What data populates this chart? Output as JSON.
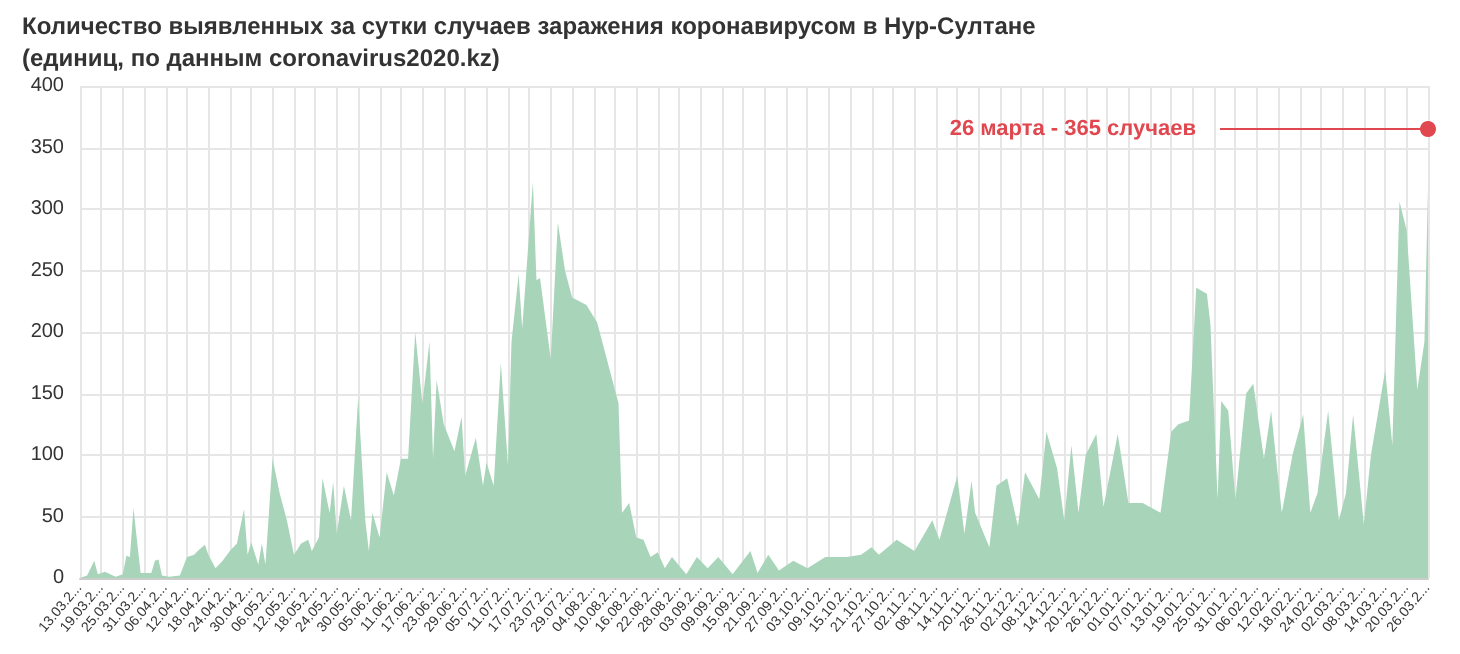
{
  "chart_data": {
    "type": "area",
    "title": "Количество выявленных за сутки случаев заражения коронавирусом в Нур-Султане",
    "subtitle": "(единиц, по данным coronavirus2020.kz)",
    "x": [
      "2020-03-13",
      "2020-03-15",
      "2020-03-17",
      "2020-03-18",
      "2020-03-20",
      "2020-03-23",
      "2020-03-25",
      "2020-03-26",
      "2020-03-27",
      "2020-03-28",
      "2020-03-29",
      "2020-03-30",
      "2020-04-02",
      "2020-04-03",
      "2020-04-04",
      "2020-04-05",
      "2020-04-07",
      "2020-04-10",
      "2020-04-12",
      "2020-04-14",
      "2020-04-15",
      "2020-04-17",
      "2020-04-18",
      "2020-04-20",
      "2020-04-22",
      "2020-04-24",
      "2020-04-26",
      "2020-04-28",
      "2020-04-29",
      "2020-04-30",
      "2020-05-02",
      "2020-05-03",
      "2020-05-04",
      "2020-05-06",
      "2020-05-08",
      "2020-05-10",
      "2020-05-12",
      "2020-05-14",
      "2020-05-16",
      "2020-05-17",
      "2020-05-19",
      "2020-05-20",
      "2020-05-22",
      "2020-05-23",
      "2020-05-24",
      "2020-05-26",
      "2020-05-28",
      "2020-05-30",
      "2020-06-01",
      "2020-06-02",
      "2020-06-03",
      "2020-06-05",
      "2020-06-07",
      "2020-06-09",
      "2020-06-11",
      "2020-06-13",
      "2020-06-15",
      "2020-06-17",
      "2020-06-19",
      "2020-06-20",
      "2020-06-21",
      "2020-06-23",
      "2020-06-26",
      "2020-06-28",
      "2020-06-29",
      "2020-07-02",
      "2020-07-04",
      "2020-07-05",
      "2020-07-07",
      "2020-07-09",
      "2020-07-11",
      "2020-07-12",
      "2020-07-14",
      "2020-07-15",
      "2020-07-18",
      "2020-07-19",
      "2020-07-20",
      "2020-07-23",
      "2020-07-25",
      "2020-07-27",
      "2020-07-29",
      "2020-08-02",
      "2020-08-05",
      "2020-08-07",
      "2020-08-10",
      "2020-08-11",
      "2020-08-12",
      "2020-08-14",
      "2020-08-16",
      "2020-08-18",
      "2020-08-20",
      "2020-08-22",
      "2020-08-24",
      "2020-08-26",
      "2020-08-30",
      "2020-09-02",
      "2020-09-05",
      "2020-09-08",
      "2020-09-12",
      "2020-09-17",
      "2020-09-19",
      "2020-09-22",
      "2020-09-25",
      "2020-09-29",
      "2020-10-03",
      "2020-10-08",
      "2020-10-14",
      "2020-10-18",
      "2020-10-21",
      "2020-10-23",
      "2020-10-28",
      "2020-11-02",
      "2020-11-07",
      "2020-11-09",
      "2020-11-14",
      "2020-11-16",
      "2020-11-18",
      "2020-11-19",
      "2020-11-23",
      "2020-11-25",
      "2020-11-28",
      "2020-12-01",
      "2020-12-03",
      "2020-12-07",
      "2020-12-09",
      "2020-12-12",
      "2020-12-14",
      "2020-12-16",
      "2020-12-18",
      "2020-12-20",
      "2020-12-23",
      "2020-12-25",
      "2020-12-29",
      "2021-01-01",
      "2021-01-05",
      "2021-01-10",
      "2021-01-13",
      "2021-01-15",
      "2021-01-18",
      "2021-01-20",
      "2021-01-23",
      "2021-01-24",
      "2021-01-26",
      "2021-01-27",
      "2021-01-29",
      "2021-01-31",
      "2021-02-03",
      "2021-02-05",
      "2021-02-08",
      "2021-02-10",
      "2021-02-13",
      "2021-02-16",
      "2021-02-19",
      "2021-02-21",
      "2021-02-23",
      "2021-02-26",
      "2021-03-01",
      "2021-03-03",
      "2021-03-05",
      "2021-03-08",
      "2021-03-10",
      "2021-03-14",
      "2021-03-16",
      "2021-03-18",
      "2021-03-20",
      "2021-03-23",
      "2021-03-25",
      "2021-03-26"
    ],
    "values": [
      0,
      2,
      14,
      3,
      5,
      1,
      3,
      18,
      17,
      57,
      30,
      4,
      4,
      14,
      15,
      2,
      1,
      2,
      17,
      19,
      22,
      27,
      19,
      8,
      14,
      22,
      28,
      56,
      19,
      29,
      11,
      28,
      11,
      97,
      69,
      47,
      19,
      28,
      31,
      22,
      33,
      81,
      53,
      78,
      36,
      75,
      47,
      147,
      47,
      22,
      53,
      33,
      86,
      67,
      97,
      97,
      200,
      142,
      192,
      97,
      161,
      125,
      103,
      131,
      83,
      114,
      75,
      94,
      75,
      175,
      92,
      192,
      247,
      203,
      322,
      242,
      244,
      178,
      289,
      250,
      228,
      222,
      208,
      186,
      153,
      142,
      53,
      61,
      33,
      31,
      17,
      21,
      8,
      17,
      3,
      17,
      8,
      17,
      3,
      22,
      4,
      19,
      6,
      14,
      8,
      17,
      17,
      19,
      25,
      19,
      31,
      22,
      47,
      31,
      83,
      36,
      79,
      53,
      25,
      75,
      81,
      42,
      86,
      64,
      119,
      89,
      47,
      108,
      53,
      100,
      117,
      58,
      117,
      61,
      61,
      53,
      119,
      125,
      128,
      236,
      231,
      206,
      64,
      144,
      136,
      64,
      150,
      158,
      97,
      136,
      53,
      100,
      133,
      53,
      69,
      136,
      47,
      69,
      133,
      44,
      100,
      169,
      108,
      306,
      283,
      153,
      192,
      317
    ],
    "color": "#a8d5ba",
    "xlim": [
      "2020-03-13",
      "2021-03-26"
    ],
    "xticks": [
      {
        "value": "2020-03-13",
        "label": "13.03.2..."
      },
      {
        "value": "2020-03-19",
        "label": "19.03.2..."
      },
      {
        "value": "2020-03-25",
        "label": "25.03.2..."
      },
      {
        "value": "2020-03-31",
        "label": "31.03.2..."
      },
      {
        "value": "2020-04-06",
        "label": "06.04.2..."
      },
      {
        "value": "2020-04-12",
        "label": "12.04.2..."
      },
      {
        "value": "2020-04-18",
        "label": "18.04.2..."
      },
      {
        "value": "2020-04-24",
        "label": "24.04.2..."
      },
      {
        "value": "2020-04-30",
        "label": "30.04.2..."
      },
      {
        "value": "2020-05-06",
        "label": "06.05.2..."
      },
      {
        "value": "2020-05-12",
        "label": "12.05.2..."
      },
      {
        "value": "2020-05-18",
        "label": "18.05.2..."
      },
      {
        "value": "2020-05-24",
        "label": "24.05.2..."
      },
      {
        "value": "2020-05-30",
        "label": "30.05.2..."
      },
      {
        "value": "2020-06-05",
        "label": "05.06.2..."
      },
      {
        "value": "2020-06-11",
        "label": "11.06.2..."
      },
      {
        "value": "2020-06-17",
        "label": "17.06.2..."
      },
      {
        "value": "2020-06-23",
        "label": "23.06.2..."
      },
      {
        "value": "2020-06-29",
        "label": "29.06.2..."
      },
      {
        "value": "2020-07-05",
        "label": "05.07.2..."
      },
      {
        "value": "2020-07-11",
        "label": "11.07.2..."
      },
      {
        "value": "2020-07-17",
        "label": "17.07.2..."
      },
      {
        "value": "2020-07-23",
        "label": "23.07.2..."
      },
      {
        "value": "2020-07-29",
        "label": "29.07.2..."
      },
      {
        "value": "2020-08-04",
        "label": "04.08.2..."
      },
      {
        "value": "2020-08-10",
        "label": "10.08.2..."
      },
      {
        "value": "2020-08-16",
        "label": "16.08.2..."
      },
      {
        "value": "2020-08-22",
        "label": "22.08.2..."
      },
      {
        "value": "2020-08-28",
        "label": "28.08.2..."
      },
      {
        "value": "2020-09-03",
        "label": "03.09.2..."
      },
      {
        "value": "2020-09-09",
        "label": "09.09.2..."
      },
      {
        "value": "2020-09-15",
        "label": "15.09.2..."
      },
      {
        "value": "2020-09-21",
        "label": "21.09.2..."
      },
      {
        "value": "2020-09-27",
        "label": "27.09.2..."
      },
      {
        "value": "2020-10-03",
        "label": "03.10.2..."
      },
      {
        "value": "2020-10-09",
        "label": "09.10.2..."
      },
      {
        "value": "2020-10-15",
        "label": "15.10.2..."
      },
      {
        "value": "2020-10-21",
        "label": "21.10.2..."
      },
      {
        "value": "2020-10-27",
        "label": "27.10.2..."
      },
      {
        "value": "2020-11-02",
        "label": "02.11.2..."
      },
      {
        "value": "2020-11-08",
        "label": "08.11.2..."
      },
      {
        "value": "2020-11-14",
        "label": "14.11.2..."
      },
      {
        "value": "2020-11-20",
        "label": "20.11.2..."
      },
      {
        "value": "2020-11-26",
        "label": "26.11.2..."
      },
      {
        "value": "2020-12-02",
        "label": "02.12.2..."
      },
      {
        "value": "2020-12-08",
        "label": "08.12.2..."
      },
      {
        "value": "2020-12-14",
        "label": "14.12.2..."
      },
      {
        "value": "2020-12-20",
        "label": "20.12.2..."
      },
      {
        "value": "2020-12-26",
        "label": "26.12.2..."
      },
      {
        "value": "2021-01-01",
        "label": "01.01.2..."
      },
      {
        "value": "2021-01-07",
        "label": "07.01.2..."
      },
      {
        "value": "2021-01-13",
        "label": "13.01.2..."
      },
      {
        "value": "2021-01-19",
        "label": "19.01.2..."
      },
      {
        "value": "2021-01-25",
        "label": "25.01.2..."
      },
      {
        "value": "2021-01-31",
        "label": "31.01.2..."
      },
      {
        "value": "2021-02-06",
        "label": "06.02.2..."
      },
      {
        "value": "2021-02-12",
        "label": "12.02.2..."
      },
      {
        "value": "2021-02-18",
        "label": "18.02.2..."
      },
      {
        "value": "2021-02-24",
        "label": "24.02.2..."
      },
      {
        "value": "2021-03-02",
        "label": "02.03.2..."
      },
      {
        "value": "2021-03-08",
        "label": "08.03.2..."
      },
      {
        "value": "2021-03-14",
        "label": "14.03.2..."
      },
      {
        "value": "2021-03-20",
        "label": "20.03.2..."
      },
      {
        "value": "2021-03-26",
        "label": "26.03.2..."
      }
    ],
    "ylim": [
      0,
      400
    ],
    "yticks": [
      0,
      50,
      100,
      150,
      200,
      250,
      300,
      350,
      400
    ],
    "grid": true,
    "annotations": [
      {
        "text": "26 марта - 365 случаев",
        "x": "2021-03-26",
        "y": 365
      }
    ]
  }
}
